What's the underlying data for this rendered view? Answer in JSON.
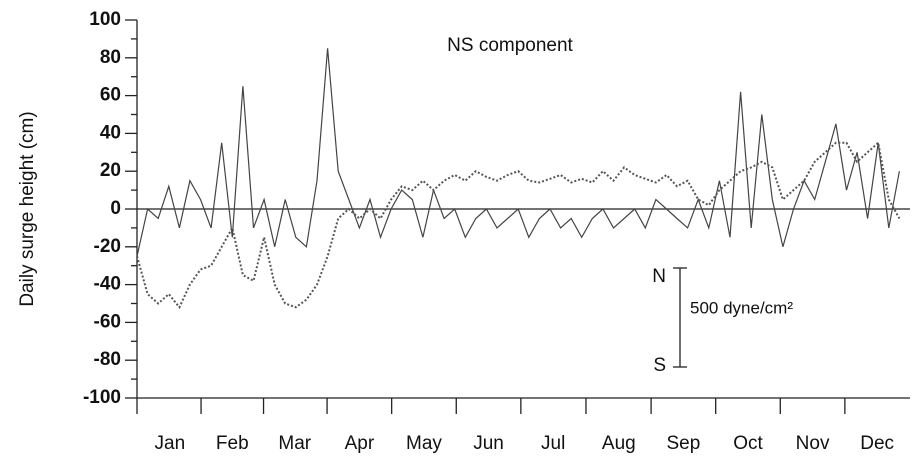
{
  "chart_data": {
    "type": "line",
    "title": "NS component",
    "y_label": "Daily surge height (cm)",
    "annotations": {
      "north": "N",
      "south": "S",
      "scale": "500 dyne/cm²"
    },
    "xlim": [
      0,
      365
    ],
    "xticks": [
      {
        "value": 15.5,
        "label": "Jan"
      },
      {
        "value": 45,
        "label": "Feb"
      },
      {
        "value": 74.5,
        "label": "Mar"
      },
      {
        "value": 105,
        "label": "Apr"
      },
      {
        "value": 135.5,
        "label": "May"
      },
      {
        "value": 166,
        "label": "Jun"
      },
      {
        "value": 196.5,
        "label": "Jul"
      },
      {
        "value": 227.5,
        "label": "Aug"
      },
      {
        "value": 258,
        "label": "Sep"
      },
      {
        "value": 288.5,
        "label": "Oct"
      },
      {
        "value": 319,
        "label": "Nov"
      },
      {
        "value": 349.5,
        "label": "Dec"
      }
    ],
    "ylim": [
      -100,
      100
    ],
    "yticks": [
      -100,
      -80,
      -60,
      -40,
      -20,
      0,
      20,
      40,
      60,
      80,
      100
    ],
    "x": [
      0,
      5,
      10,
      15,
      20,
      25,
      30,
      35,
      40,
      45,
      50,
      55,
      60,
      65,
      70,
      75,
      80,
      85,
      90,
      95,
      100,
      105,
      110,
      115,
      120,
      125,
      130,
      135,
      140,
      145,
      150,
      155,
      160,
      165,
      170,
      175,
      180,
      185,
      190,
      195,
      200,
      205,
      210,
      215,
      220,
      225,
      230,
      235,
      240,
      245,
      250,
      255,
      260,
      265,
      270,
      275,
      280,
      285,
      290,
      295,
      300,
      305,
      310,
      315,
      320,
      325,
      330,
      335,
      340,
      345,
      350,
      355,
      360
    ],
    "series": [
      {
        "style": "solid",
        "color": "#444444",
        "values": [
          -25,
          0,
          -5,
          12,
          -10,
          15,
          5,
          -10,
          35,
          -15,
          65,
          -10,
          5,
          -20,
          5,
          -15,
          -20,
          15,
          85,
          20,
          5,
          -10,
          5,
          -15,
          0,
          10,
          5,
          -15,
          10,
          -5,
          0,
          -15,
          -5,
          0,
          -10,
          -5,
          0,
          -15,
          -5,
          0,
          -10,
          -5,
          -15,
          -5,
          0,
          -10,
          -5,
          0,
          -10,
          5,
          0,
          -5,
          -10,
          5,
          -10,
          15,
          -15,
          62,
          -10,
          50,
          5,
          -20,
          0,
          15,
          5,
          25,
          45,
          10,
          30,
          -5,
          35,
          -10,
          20
        ]
      },
      {
        "style": "dotted",
        "color": "#555555",
        "values": [
          -25,
          -45,
          -50,
          -45,
          -52,
          -40,
          -32,
          -30,
          -20,
          -10,
          -35,
          -38,
          -15,
          -40,
          -50,
          -52,
          -48,
          -40,
          -25,
          -5,
          0,
          -5,
          0,
          -5,
          5,
          12,
          10,
          15,
          10,
          15,
          18,
          15,
          20,
          17,
          15,
          18,
          20,
          15,
          14,
          16,
          18,
          14,
          16,
          14,
          20,
          15,
          22,
          18,
          16,
          14,
          18,
          12,
          15,
          5,
          2,
          10,
          15,
          20,
          22,
          25,
          22,
          5,
          10,
          15,
          25,
          30,
          35,
          35,
          25,
          30,
          35,
          5,
          -5
        ]
      }
    ]
  }
}
